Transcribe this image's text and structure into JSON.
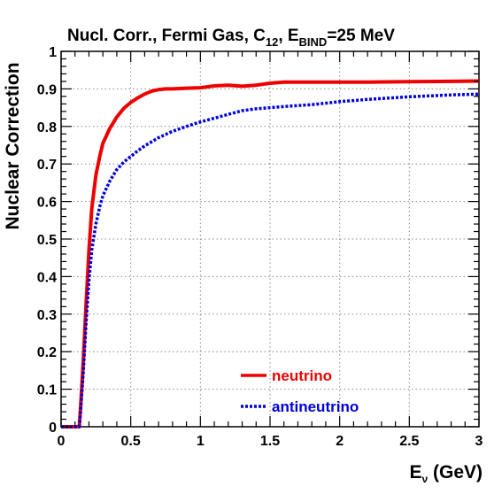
{
  "chart_data": {
    "type": "line",
    "title": {
      "main": "Nucl. Corr.,  Fermi Gas, C",
      "sub1": "12",
      "mid": ", E",
      "sub2": "BIND",
      "tail": "=25 MeV"
    },
    "xlabel": {
      "main": "E",
      "sub": "ν",
      "tail": " (GeV)"
    },
    "ylabel": "Nuclear Correction",
    "xlim": [
      0,
      3
    ],
    "ylim": [
      0,
      1
    ],
    "grid": true,
    "legend_position": "bottom-center",
    "x_ticks": [
      {
        "v": 0,
        "label": "0"
      },
      {
        "v": 0.5,
        "label": "0.5"
      },
      {
        "v": 1,
        "label": "1"
      },
      {
        "v": 1.5,
        "label": "1.5"
      },
      {
        "v": 2,
        "label": "2"
      },
      {
        "v": 2.5,
        "label": "2.5"
      },
      {
        "v": 3,
        "label": "3"
      }
    ],
    "y_ticks": [
      {
        "v": 0,
        "label": "0"
      },
      {
        "v": 0.1,
        "label": "0.1"
      },
      {
        "v": 0.2,
        "label": "0.2"
      },
      {
        "v": 0.3,
        "label": "0.3"
      },
      {
        "v": 0.4,
        "label": "0.4"
      },
      {
        "v": 0.5,
        "label": "0.5"
      },
      {
        "v": 0.6,
        "label": "0.6"
      },
      {
        "v": 0.7,
        "label": "0.7"
      },
      {
        "v": 0.8,
        "label": "0.8"
      },
      {
        "v": 0.9,
        "label": "0.9"
      },
      {
        "v": 1,
        "label": "1"
      }
    ],
    "series": [
      {
        "name": "neutrino",
        "color": "#ee0000",
        "style": "solid",
        "x": [
          0,
          0.13,
          0.14,
          0.16,
          0.18,
          0.2,
          0.22,
          0.25,
          0.28,
          0.3,
          0.35,
          0.4,
          0.45,
          0.5,
          0.55,
          0.6,
          0.65,
          0.7,
          0.75,
          0.8,
          0.9,
          1.0,
          1.1,
          1.2,
          1.3,
          1.4,
          1.5,
          1.6,
          1.8,
          2.0,
          2.2,
          2.5,
          2.8,
          3.0
        ],
        "y": [
          0,
          0,
          0.05,
          0.18,
          0.33,
          0.47,
          0.58,
          0.67,
          0.725,
          0.755,
          0.795,
          0.825,
          0.848,
          0.864,
          0.876,
          0.886,
          0.894,
          0.898,
          0.9,
          0.9,
          0.902,
          0.903,
          0.908,
          0.91,
          0.907,
          0.91,
          0.915,
          0.918,
          0.918,
          0.918,
          0.918,
          0.919,
          0.92,
          0.921
        ]
      },
      {
        "name": "antineutrino",
        "color": "#0000dd",
        "style": "dotted",
        "x": [
          0,
          0.13,
          0.14,
          0.16,
          0.18,
          0.2,
          0.22,
          0.25,
          0.28,
          0.3,
          0.35,
          0.4,
          0.45,
          0.5,
          0.55,
          0.6,
          0.7,
          0.8,
          0.9,
          1.0,
          1.1,
          1.2,
          1.3,
          1.4,
          1.5,
          1.6,
          1.8,
          2.0,
          2.2,
          2.5,
          2.8,
          3.0
        ],
        "y": [
          0,
          0,
          0.04,
          0.15,
          0.28,
          0.39,
          0.47,
          0.54,
          0.59,
          0.615,
          0.655,
          0.685,
          0.705,
          0.72,
          0.735,
          0.748,
          0.77,
          0.787,
          0.8,
          0.812,
          0.822,
          0.832,
          0.842,
          0.847,
          0.85,
          0.853,
          0.858,
          0.866,
          0.872,
          0.879,
          0.884,
          0.886
        ]
      }
    ]
  }
}
